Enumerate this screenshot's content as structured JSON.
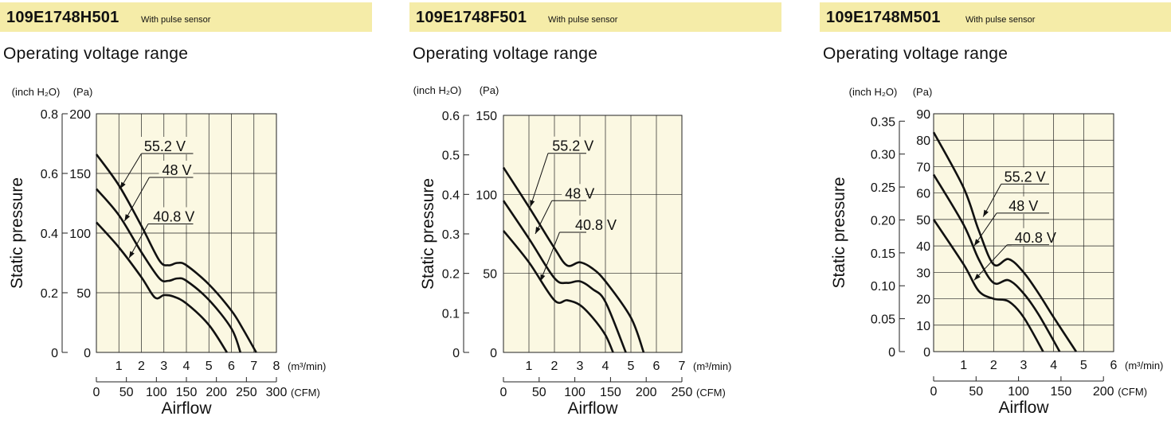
{
  "chart_data": [
    {
      "type": "line",
      "model": "109E1748H501",
      "model_note": "With pulse sensor",
      "section_title": "Operating voltage range",
      "y1_unit": "(inch H₂O)",
      "y2_unit": "(Pa)",
      "ylabel": "Static pressure",
      "xlabel": "Airflow",
      "x1_unit": "(m³/min)",
      "x2_unit": "(CFM)",
      "xlim": [
        0,
        8
      ],
      "ylim": [
        0,
        200
      ],
      "grid": true,
      "x_ticks": [
        "1",
        "2",
        "3",
        "4",
        "5",
        "6",
        "7",
        "8"
      ],
      "cfm_ticks": [
        "0",
        "50",
        "100",
        "150",
        "200",
        "250",
        "300"
      ],
      "cfm_max": 300,
      "pa_ticks": [
        "0",
        "50",
        "100",
        "150",
        "200"
      ],
      "inch_ticks": [
        "0",
        "0.2",
        "0.4",
        "0.6",
        "0.8"
      ],
      "inch_max": 0.8,
      "series": [
        {
          "name": "55.2 V",
          "x": [
            0,
            1,
            2,
            2.8,
            3.2,
            3.6,
            4,
            5,
            6,
            6.5,
            7.1
          ],
          "y": [
            166,
            140,
            106,
            77,
            73,
            75,
            73,
            57,
            35,
            20,
            0
          ]
        },
        {
          "name": "48 V",
          "x": [
            0,
            1,
            2,
            2.8,
            3.2,
            3.6,
            4,
            5,
            6,
            6.4
          ],
          "y": [
            137,
            115,
            84,
            62,
            60,
            62,
            60,
            44,
            20,
            0
          ]
        },
        {
          "name": "40.8 V",
          "x": [
            0,
            1,
            2,
            2.6,
            3,
            3.4,
            4,
            5,
            5.8
          ],
          "y": [
            109,
            88,
            63,
            46,
            48,
            47,
            41,
            23,
            0
          ]
        }
      ],
      "labels": [
        {
          "text": "55.2 V",
          "x": 2.05,
          "y": 168,
          "tx": 1.05,
          "ty": 137,
          "x0": 2.0,
          "x1": 4.3
        },
        {
          "text": "48 V",
          "x": 2.85,
          "y": 148,
          "tx": 1.25,
          "ty": 110,
          "x0": 2.35,
          "x1": 4.3
        },
        {
          "text": "40.8 V",
          "x": 2.45,
          "y": 109,
          "tx": 1.45,
          "ty": 79,
          "x0": 2.3,
          "x1": 4.3
        }
      ]
    },
    {
      "type": "line",
      "model": "109E1748F501",
      "model_note": "With pulse sensor",
      "section_title": "Operating voltage range",
      "y1_unit": "(inch H₂O)",
      "y2_unit": "(Pa)",
      "ylabel": "Static pressure",
      "xlabel": "Airflow",
      "x1_unit": "(m³/min)",
      "x2_unit": "(CFM)",
      "xlim": [
        0,
        7
      ],
      "ylim": [
        0,
        150
      ],
      "grid": true,
      "x_ticks": [
        "1",
        "2",
        "3",
        "4",
        "5",
        "6",
        "7"
      ],
      "cfm_ticks": [
        "0",
        "50",
        "100",
        "150",
        "200",
        "250"
      ],
      "cfm_max": 250,
      "pa_ticks": [
        "0",
        "50",
        "100",
        "150"
      ],
      "inch_ticks": [
        "0",
        "0.1",
        "0.2",
        "0.3",
        "0.4",
        "0.5",
        "0.6"
      ],
      "inch_max": 0.6,
      "series": [
        {
          "name": "55.2 V",
          "x": [
            0,
            1,
            2,
            2.5,
            3,
            3.5,
            4,
            5,
            5.5
          ],
          "y": [
            117,
            92,
            66,
            55,
            57,
            53,
            45,
            22,
            0
          ]
        },
        {
          "name": "48 V",
          "x": [
            0,
            1,
            2,
            2.5,
            3,
            3.5,
            4,
            4.8
          ],
          "y": [
            96,
            72,
            47,
            44,
            45,
            40,
            32,
            0
          ]
        },
        {
          "name": "40.8 V",
          "x": [
            0,
            1,
            2,
            2.5,
            3,
            3.5,
            4,
            4.3
          ],
          "y": [
            77,
            57,
            33,
            33,
            30,
            22,
            11,
            0
          ]
        }
      ],
      "labels": [
        {
          "text": "55.2 V",
          "x": 1.85,
          "y": 127,
          "tx": 1.05,
          "ty": 92,
          "x0": 1.75,
          "x1": 3.25
        },
        {
          "text": "48 V",
          "x": 2.35,
          "y": 97,
          "tx": 1.25,
          "ty": 75,
          "x0": 1.9,
          "x1": 3.25
        },
        {
          "text": "40.8 V",
          "x": 2.75,
          "y": 77,
          "tx": 1.45,
          "ty": 45,
          "x0": 2.2,
          "x1": 3.25
        }
      ]
    },
    {
      "type": "line",
      "model": "109E1748M501",
      "model_note": "With pulse sensor",
      "section_title": "Operating voltage range",
      "y1_unit": "(inch H₂O)",
      "y2_unit": "(Pa)",
      "ylabel": "Static pressure",
      "xlabel": "Airflow",
      "x1_unit": "(m³/min)",
      "x2_unit": "(CFM)",
      "xlim": [
        0,
        6
      ],
      "ylim": [
        0,
        90
      ],
      "grid": true,
      "x_ticks": [
        "1",
        "2",
        "3",
        "4",
        "5",
        "6"
      ],
      "cfm_ticks": [
        "0",
        "50",
        "100",
        "150",
        "200"
      ],
      "cfm_max": 212,
      "pa_ticks": [
        "0",
        "10",
        "20",
        "30",
        "40",
        "50",
        "60",
        "70",
        "80",
        "90"
      ],
      "inch_ticks": [
        "0",
        "0.05",
        "0.10",
        "0.15",
        "0.20",
        "0.25",
        "0.30",
        "0.35"
      ],
      "inch_max": 0.35,
      "inch_top_pa": 87.2,
      "series": [
        {
          "name": "55.2 V",
          "x": [
            0,
            1,
            1.5,
            2,
            2.5,
            3,
            3.5,
            4,
            4.75
          ],
          "y": [
            83,
            62,
            46,
            33,
            35,
            30,
            22,
            13,
            0
          ]
        },
        {
          "name": "48 V",
          "x": [
            0,
            1,
            1.5,
            2,
            2.5,
            3,
            3.5,
            4.2
          ],
          "y": [
            67,
            48,
            35,
            26,
            27,
            22,
            14,
            0
          ]
        },
        {
          "name": "40.8 V",
          "x": [
            0,
            1,
            1.5,
            2,
            2.5,
            3,
            3.65
          ],
          "y": [
            50,
            33,
            23,
            20,
            19,
            13,
            0
          ]
        }
      ],
      "labels": [
        {
          "text": "55.2 V",
          "x": 2.3,
          "y": 64,
          "tx": 1.65,
          "ty": 51,
          "x0": 2.25,
          "x1": 3.85
        },
        {
          "text": "48 V",
          "x": 2.45,
          "y": 53,
          "tx": 1.35,
          "ty": 40,
          "x0": 2.1,
          "x1": 3.85
        },
        {
          "text": "40.8 V",
          "x": 2.65,
          "y": 41,
          "tx": 1.35,
          "ty": 27,
          "x0": 2.45,
          "x1": 3.85
        }
      ]
    }
  ]
}
